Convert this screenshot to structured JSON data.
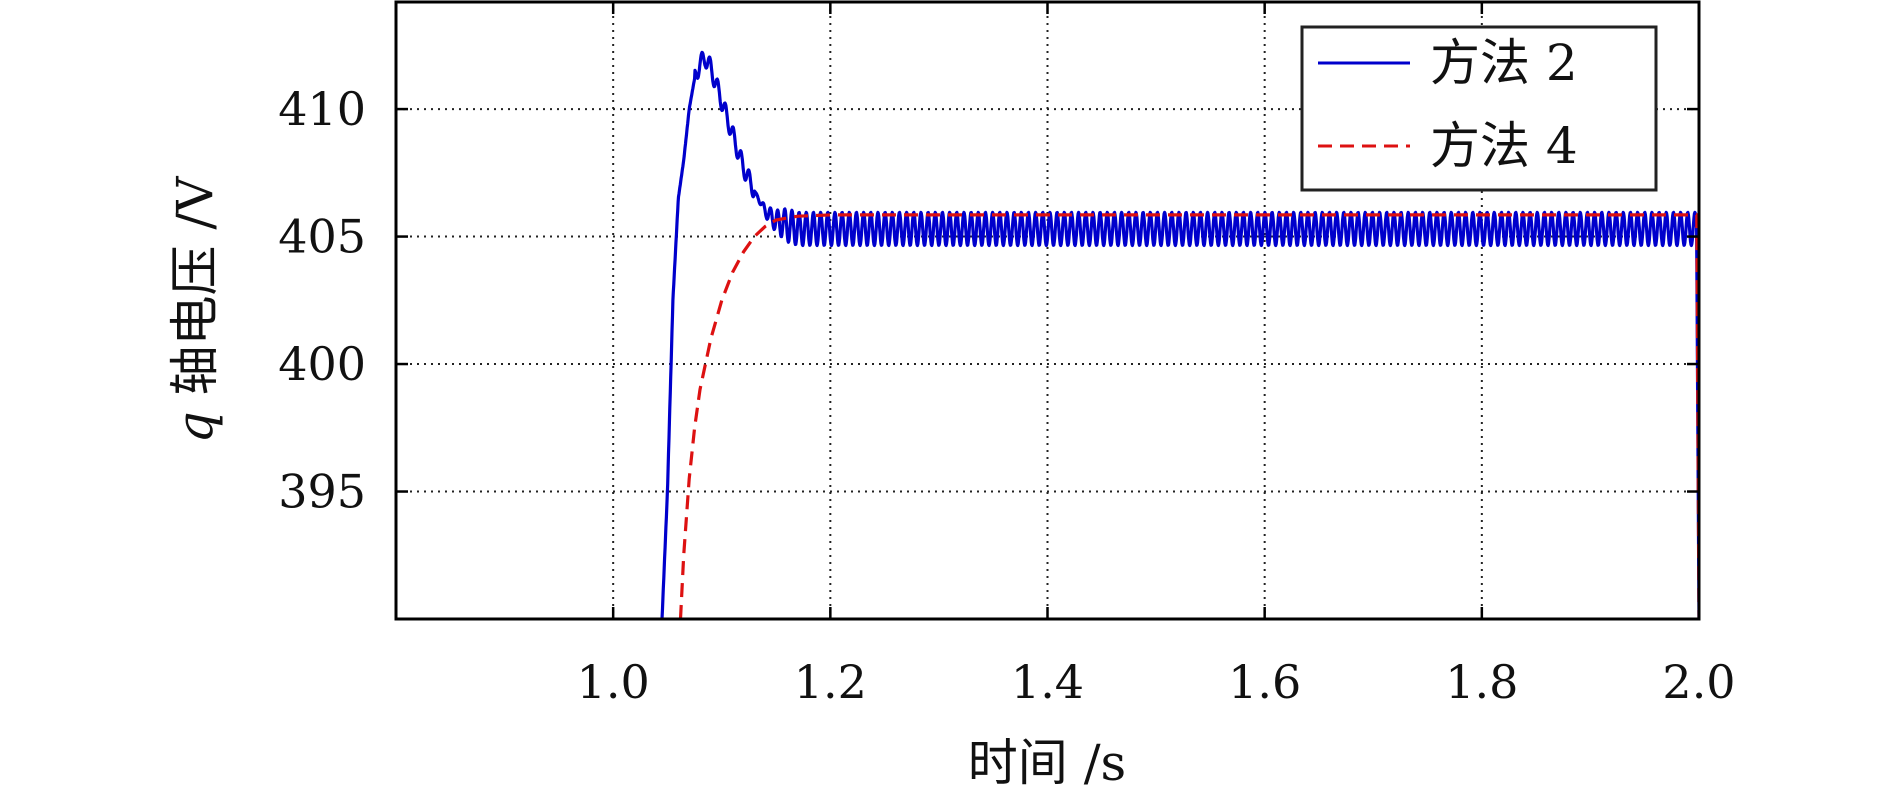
{
  "chart_data": {
    "type": "line",
    "xlabel": "时间 /s",
    "ylabel_prefix": "q",
    "ylabel_text": " 轴电压 /V",
    "xlim": [
      0.8,
      2.0
    ],
    "ylim": [
      390,
      414.2
    ],
    "xticks": [
      1.0,
      1.2,
      1.4,
      1.6,
      1.8,
      2.0
    ],
    "xtick_labels": [
      "1.0",
      "1.2",
      "1.4",
      "1.6",
      "1.8",
      "2.0"
    ],
    "yticks": [
      395,
      400,
      405,
      410
    ],
    "ytick_labels": [
      "395",
      "400",
      "405",
      "410"
    ],
    "grid": true,
    "legend_position": "top-right",
    "series": [
      {
        "name": "方法 2",
        "color": "#0000cc",
        "style": "solid",
        "envelope": [
          [
            1.045,
            390.0
          ],
          [
            1.05,
            395.0
          ],
          [
            1.055,
            402.5
          ],
          [
            1.06,
            406.5
          ],
          [
            1.065,
            408.0
          ],
          [
            1.07,
            410.0
          ],
          [
            1.075,
            411.2
          ],
          [
            1.08,
            411.8
          ],
          [
            1.085,
            412.0
          ],
          [
            1.09,
            411.6
          ],
          [
            1.1,
            410.3
          ],
          [
            1.11,
            409.0
          ],
          [
            1.12,
            407.7
          ],
          [
            1.13,
            406.8
          ],
          [
            1.14,
            406.0
          ],
          [
            1.15,
            405.6
          ],
          [
            1.17,
            405.3
          ],
          [
            1.2,
            405.3
          ],
          [
            1.998,
            405.3
          ],
          [
            2.0,
            390.0
          ]
        ],
        "oscillation_amplitude": 0.65,
        "oscillation_period": 0.0066
      },
      {
        "name": "方法 4",
        "color": "#dd1111",
        "style": "dashed",
        "points": [
          [
            1.062,
            390.0
          ],
          [
            1.065,
            392.5
          ],
          [
            1.07,
            395.5
          ],
          [
            1.075,
            397.5
          ],
          [
            1.08,
            399.0
          ],
          [
            1.09,
            401.0
          ],
          [
            1.1,
            402.5
          ],
          [
            1.11,
            403.6
          ],
          [
            1.12,
            404.4
          ],
          [
            1.13,
            405.0
          ],
          [
            1.14,
            405.4
          ],
          [
            1.15,
            405.65
          ],
          [
            1.17,
            405.8
          ],
          [
            1.2,
            405.85
          ],
          [
            1.998,
            405.85
          ],
          [
            2.0,
            390.0
          ]
        ]
      }
    ]
  }
}
